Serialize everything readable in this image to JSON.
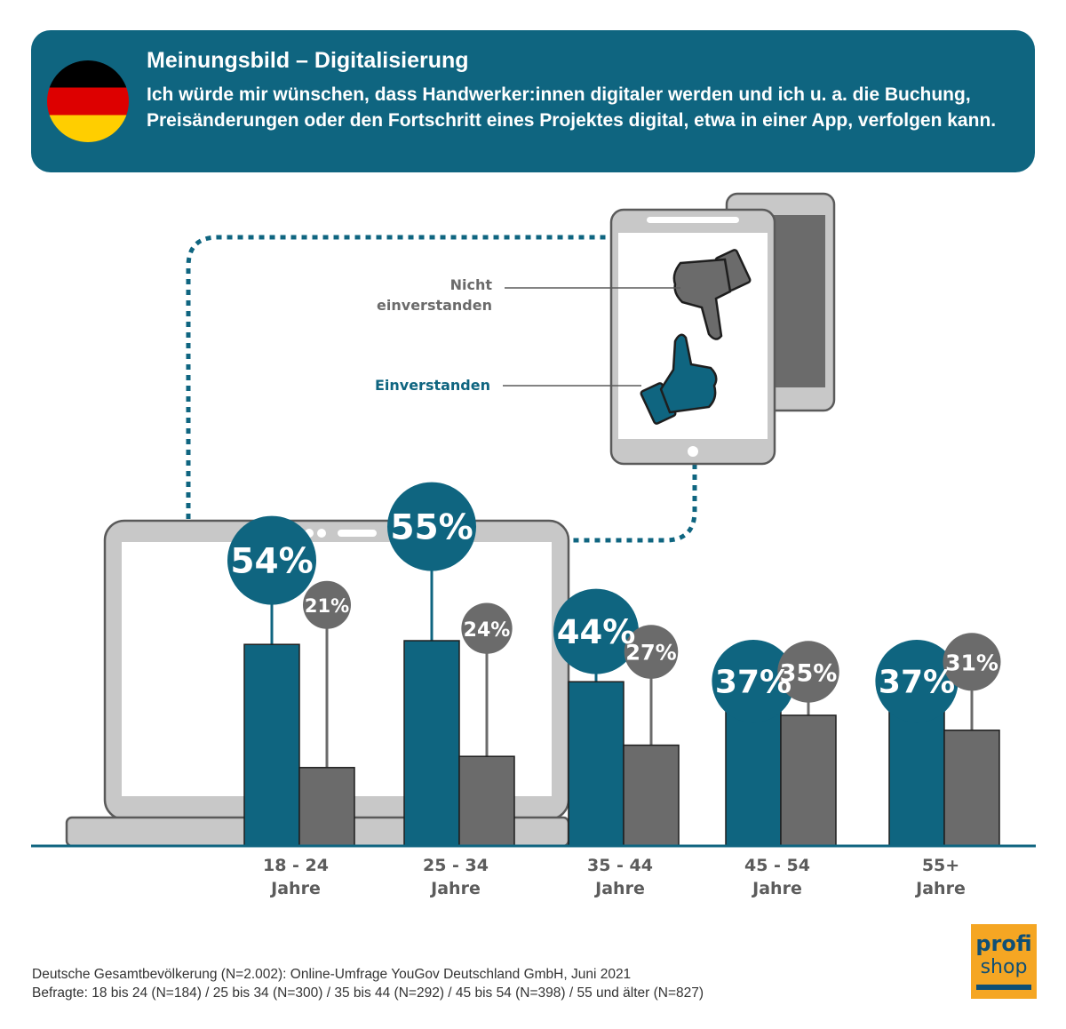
{
  "header": {
    "title": "Meinungsbild – Digitalisierung",
    "question": "Ich würde mir wünschen, dass Handwerker:innen digitaler werden und ich u. a. die Buchung, Preisänderungen oder den Fortschritt eines Projektes digital, etwa in einer App, verfolgen kann."
  },
  "legend": {
    "disagree_line1": "Nicht",
    "disagree_line2": "einverstanden",
    "agree": "Einverstanden",
    "disagree_icon": "thumbs-down-icon",
    "agree_icon": "thumbs-up-icon"
  },
  "colors": {
    "agree": "#0f6580",
    "disagree": "#6b6b6b",
    "axis": "#0f6580",
    "device_frame": "#c8c8c8"
  },
  "chart_data": {
    "type": "bar",
    "categories": [
      "18 - 24 Jahre",
      "25 - 34 Jahre",
      "35 - 44 Jahre",
      "45 - 54 Jahre",
      "55+ Jahre"
    ],
    "category_lines": [
      [
        "18 - 24",
        "Jahre"
      ],
      [
        "25 - 34",
        "Jahre"
      ],
      [
        "35 - 44",
        "Jahre"
      ],
      [
        "45 - 54",
        "Jahre"
      ],
      [
        "55+",
        "Jahre"
      ]
    ],
    "series": [
      {
        "name": "Einverstanden",
        "values": [
          54,
          55,
          44,
          37,
          37
        ],
        "labels": [
          "54%",
          "55%",
          "44%",
          "37%",
          "37%"
        ]
      },
      {
        "name": "Nicht einverstanden",
        "values": [
          21,
          24,
          27,
          35,
          31
        ],
        "labels": [
          "21%",
          "24%",
          "27%",
          "35%",
          "31%"
        ]
      }
    ],
    "unit": "%"
  },
  "source": {
    "line1": "Deutsche Gesamtbevölkerung (N=2.002): Online-Umfrage YouGov Deutschland GmbH, Juni 2021",
    "line2": "Befragte: 18 bis 24 (N=184) / 25 bis 34 (N=300) / 35 bis 44 (N=292) / 45 bis 54 (N=398) / 55 und älter (N=827)"
  },
  "logo": {
    "line1": "profi",
    "line2": "shop"
  }
}
